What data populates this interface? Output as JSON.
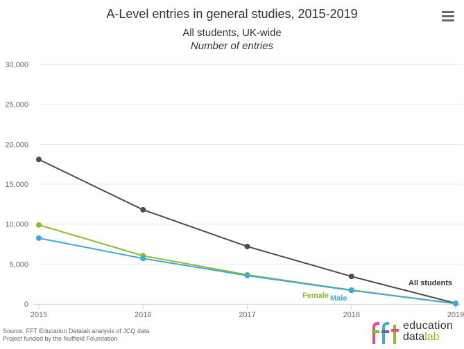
{
  "chart_data": {
    "type": "line",
    "title": "A-Level entries in general studies, 2015-2019",
    "subtitle": "All students, UK-wide",
    "subtitle2": "Number of entries",
    "x": [
      "2015",
      "2016",
      "2017",
      "2018",
      "2019"
    ],
    "ylim": [
      0,
      30000
    ],
    "yticks": [
      0,
      5000,
      10000,
      15000,
      20000,
      25000,
      30000
    ],
    "ytick_labels": [
      "0",
      "5,000",
      "10,000",
      "15,000",
      "20,000",
      "25,000",
      "30,000"
    ],
    "grid": true,
    "series": [
      {
        "name": "All students",
        "color": "#4d4d4d",
        "values": [
          18100,
          11800,
          7200,
          3450,
          90
        ]
      },
      {
        "name": "Female",
        "color": "#8dba2b",
        "values": [
          9900,
          6050,
          3650,
          1750,
          50
        ]
      },
      {
        "name": "Male",
        "color": "#3fa9dc",
        "values": [
          8250,
          5700,
          3550,
          1700,
          40
        ]
      }
    ]
  },
  "footer": {
    "source_line1": "Source: FFT Education Datalab analysis of JCQ data",
    "source_line2": "Project funded by the Nuffield Foundation"
  },
  "logo": {
    "mark": "fft",
    "word1": "education",
    "word2a": "data",
    "word2b": "lab",
    "colors": [
      "#8dba2b",
      "#e44c8f",
      "#3fa9dc",
      "#7c5ba6"
    ]
  }
}
